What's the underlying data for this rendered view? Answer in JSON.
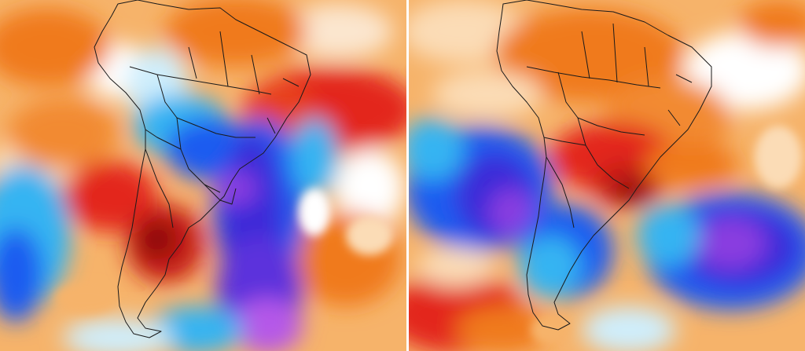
{
  "image": {
    "description_free": true
  },
  "palette": {
    "warm_deep": "#8b0a0a",
    "warm_red": "#e3261a",
    "warm_orange": "#f07a1e",
    "warm_light": "#f6b36a",
    "warm_pale": "#fbdcb6",
    "neutral": "#ffffff",
    "cool_pale": "#cfeefc",
    "cool_cyan": "#36b4f2",
    "cool_blue": "#1d5cf0",
    "cool_indigo": "#3a2ad8",
    "cool_violet": "#8a3ee0",
    "cool_magenta": "#b558e8",
    "border": "#1a1a1a"
  },
  "panels": [
    {
      "name": "left-map-panel"
    },
    {
      "name": "right-map-panel"
    }
  ]
}
